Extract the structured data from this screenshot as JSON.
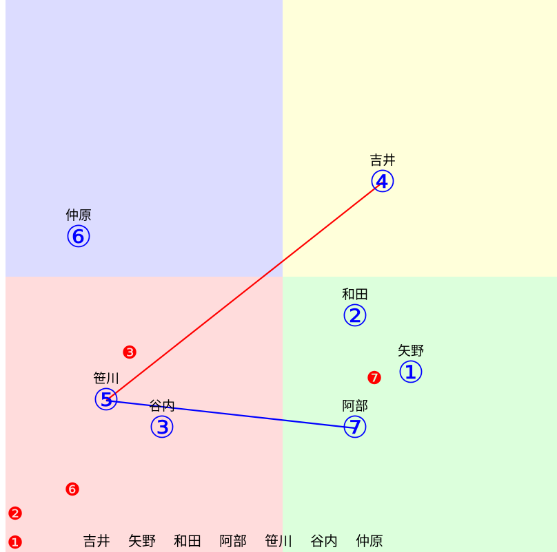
{
  "quadrants": [
    {
      "id": "top-left",
      "color": "#dcdcff"
    },
    {
      "id": "top-right",
      "color": "#ffffda"
    },
    {
      "id": "bottom-left",
      "color": "#ffdcdc"
    },
    {
      "id": "bottom-right",
      "color": "#dcffdc"
    }
  ],
  "players": [
    {
      "key": "yoshii",
      "name": "吉井",
      "mark": "④"
    },
    {
      "key": "yano",
      "name": "矢野",
      "mark": "①"
    },
    {
      "key": "wada",
      "name": "和田",
      "mark": "②"
    },
    {
      "key": "abe",
      "name": "阿部",
      "mark": "⑦"
    },
    {
      "key": "sasagawa",
      "name": "笹川",
      "mark": "⑤"
    },
    {
      "key": "taniuchi",
      "name": "谷内",
      "mark": "③"
    },
    {
      "key": "nakahara",
      "name": "仲原",
      "mark": "⑥"
    }
  ],
  "badges": [
    {
      "key": "b3",
      "mark": "❸"
    },
    {
      "key": "b7",
      "mark": "❼"
    },
    {
      "key": "b6",
      "mark": "❻"
    },
    {
      "key": "b2",
      "mark": "❷"
    },
    {
      "key": "b1",
      "mark": "❶"
    }
  ],
  "links": [
    {
      "from": "sasagawa",
      "to": "yoshii",
      "color": "#ff0000"
    },
    {
      "from": "sasagawa",
      "to": "abe",
      "color": "#0000ff"
    }
  ],
  "legend": [
    "吉井",
    "矢野",
    "和田",
    "阿部",
    "笹川",
    "谷内",
    "仲原"
  ],
  "colors": {
    "marker": "#0000ff",
    "badge": "#ff0000",
    "name": "#000000"
  }
}
